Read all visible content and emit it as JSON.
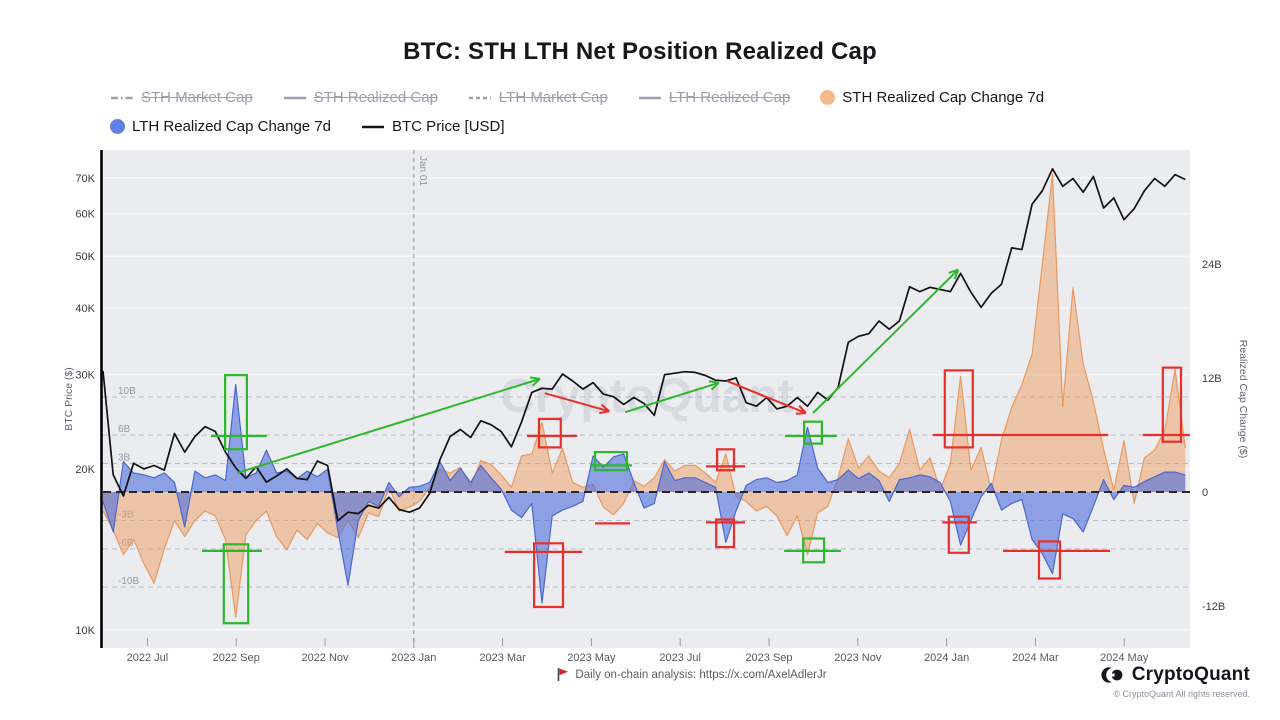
{
  "header": {
    "title": "BTC: STH LTH Net Position Realized Cap"
  },
  "legend": {
    "items": [
      {
        "label": "STH Market Cap",
        "icon": "line-dashdot",
        "color": "#9aa0ae",
        "disabled": true,
        "row": 1
      },
      {
        "label": "STH Realized Cap",
        "icon": "line",
        "color": "#9aa0ae",
        "disabled": true,
        "row": 1
      },
      {
        "label": "LTH Market Cap",
        "icon": "line-dashed",
        "color": "#9aa0ae",
        "disabled": true,
        "row": 1
      },
      {
        "label": "LTH Realized Cap",
        "icon": "line",
        "color": "#9aa0ae",
        "disabled": true,
        "row": 1
      },
      {
        "label": "STH Realized Cap Change 7d",
        "icon": "circle",
        "color": "#f3b88c",
        "disabled": false,
        "row": 1
      },
      {
        "label": "LTH Realized Cap Change 7d",
        "icon": "circle",
        "color": "#5f80e6",
        "disabled": false,
        "row": 2
      },
      {
        "label": "BTC Price [USD]",
        "icon": "line",
        "color": "#141418",
        "disabled": false,
        "row": 2
      }
    ]
  },
  "chart_data": {
    "type": "mixed",
    "title": "BTC: STH LTH Net Position Realized Cap",
    "watermark": "CryptoQuant",
    "start_date": "2022-06-01",
    "interval_days": 7,
    "axes": {
      "left": {
        "label": "BTC Price ($)",
        "scale": "log",
        "ticks": [
          {
            "value": 70,
            "label": "70K"
          },
          {
            "value": 60,
            "label": "60K"
          },
          {
            "value": 50,
            "label": "50K"
          },
          {
            "value": 40,
            "label": "40K"
          },
          {
            "value": 30,
            "label": "30K"
          },
          {
            "value": 20,
            "label": "20K"
          },
          {
            "value": 10,
            "label": "10K"
          }
        ]
      },
      "right": {
        "label": "Realized Cap Change ($)",
        "scale": "linear",
        "ticks": [
          {
            "value": 24,
            "label": "24B"
          },
          {
            "value": 12,
            "label": "12B"
          },
          {
            "value": 0,
            "label": "0"
          },
          {
            "value": -12,
            "label": "-12B"
          }
        ]
      },
      "inner_gridlines": [
        {
          "value": 10,
          "label": "10B"
        },
        {
          "value": 6,
          "label": "6B"
        },
        {
          "value": 3,
          "label": "3B"
        },
        {
          "value": -3,
          "label": "-3B"
        },
        {
          "value": -6,
          "label": "-6B"
        },
        {
          "value": -10,
          "label": "-10B"
        }
      ],
      "x_ticks": [
        {
          "month_offset": 1,
          "label": "2022 Jul"
        },
        {
          "month_offset": 3,
          "label": "2022 Sep"
        },
        {
          "month_offset": 5,
          "label": "2022 Nov"
        },
        {
          "month_offset": 7,
          "label": "2023 Jan"
        },
        {
          "month_offset": 9,
          "label": "2023 Mar"
        },
        {
          "month_offset": 11,
          "label": "2023 May"
        },
        {
          "month_offset": 13,
          "label": "2023 Jul"
        },
        {
          "month_offset": 15,
          "label": "2023 Sep"
        },
        {
          "month_offset": 17,
          "label": "2023 Nov"
        },
        {
          "month_offset": 19,
          "label": "2024 Jan"
        },
        {
          "month_offset": 21,
          "label": "2024 Mar"
        },
        {
          "month_offset": 23,
          "label": "2024 May"
        }
      ]
    },
    "event_line": {
      "label": "Jan 01",
      "month_offset": 7.0
    },
    "zero_line_value": 0,
    "series": [
      {
        "id": "sth-change",
        "name": "STH Realized Cap Change 7d",
        "type": "area",
        "axis": "right",
        "fill": "rgba(238,160,100,0.52)",
        "stroke": "rgba(233,150,92,0.95)",
        "unit": "B USD",
        "values": [
          -2.0,
          -4.0,
          -6.6,
          -5.0,
          -7.5,
          -9.6,
          -6.0,
          -3.0,
          -4.7,
          -3.0,
          -2.0,
          -2.5,
          -5.0,
          -13.2,
          -4.5,
          -3.0,
          -2.0,
          -4.7,
          -6.1,
          -4.0,
          -5.0,
          -3.3,
          -4.3,
          -4.8,
          -3.0,
          -4.8,
          -2.2,
          -2.6,
          0.5,
          -2.0,
          -1.6,
          -1.0,
          0.5,
          2.4,
          2.0,
          2.6,
          0.6,
          3.3,
          2.9,
          1.8,
          0.5,
          3.8,
          4.0,
          7.3,
          2.0,
          4.6,
          1.0,
          0.5,
          0.8,
          -1.6,
          -2.4,
          -1.2,
          1.2,
          0.6,
          1.5,
          3.4,
          2.2,
          2.8,
          2.8,
          2.0,
          1.0,
          4.0,
          -0.5,
          -1.0,
          -2.0,
          -1.5,
          -2.5,
          -4.6,
          -2.5,
          -6.6,
          -2.2,
          -1.5,
          1.5,
          5.6,
          2.5,
          3.8,
          2.2,
          1.5,
          3.0,
          6.6,
          2.3,
          3.6,
          0.2,
          3.0,
          12.2,
          2.3,
          4.7,
          0.2,
          5.5,
          8.9,
          11.3,
          14.5,
          24.0,
          33.5,
          9.0,
          21.5,
          13.5,
          9.5,
          4.5,
          0.2,
          5.4,
          -1.2,
          3.6,
          4.4,
          6.5,
          12.9,
          4.6
        ]
      },
      {
        "id": "lth-change",
        "name": "LTH Realized Cap Change 7d",
        "type": "area",
        "axis": "right",
        "fill": "rgba(78,110,218,0.60)",
        "stroke": "#4a68cf",
        "unit": "B USD",
        "values": [
          -1.0,
          -4.2,
          3.2,
          2.0,
          1.8,
          1.5,
          2.0,
          1.0,
          -3.7,
          2.2,
          1.5,
          1.8,
          1.2,
          11.3,
          1.5,
          2.0,
          4.4,
          2.0,
          2.2,
          1.4,
          2.2,
          1.6,
          2.4,
          -4.0,
          -9.8,
          -3.0,
          -1.0,
          -1.5,
          1.0,
          -0.5,
          0.5,
          0.6,
          1.0,
          3.2,
          1.2,
          2.5,
          1.0,
          2.8,
          1.5,
          0.3,
          -1.9,
          -2.7,
          -1.2,
          -11.7,
          -2.5,
          -1.9,
          -1.5,
          -1.0,
          3.8,
          2.6,
          3.7,
          4.0,
          1.0,
          -1.7,
          -1.2,
          3.2,
          1.2,
          1.5,
          1.5,
          1.0,
          0.5,
          -5.3,
          -2.0,
          0.7,
          1.3,
          1.5,
          1.0,
          1.2,
          1.8,
          6.8,
          2.5,
          1.0,
          1.3,
          2.3,
          1.4,
          2.0,
          1.2,
          -1.0,
          1.3,
          1.5,
          1.8,
          1.6,
          1.0,
          -1.0,
          -5.6,
          -3.0,
          -0.5,
          0.9,
          -1.9,
          -1.2,
          -0.8,
          -5.0,
          -6.5,
          -8.6,
          -2.3,
          -2.8,
          -4.2,
          -1.5,
          1.3,
          -0.8,
          0.7,
          0.5,
          1.1,
          1.6,
          2.1,
          2.1,
          1.8
        ]
      },
      {
        "id": "btc-price",
        "name": "BTC Price [USD]",
        "type": "line",
        "axis": "left",
        "stroke": "#121214",
        "unit": "K USD",
        "values": [
          30.5,
          19.5,
          17.8,
          20.5,
          20.0,
          20.3,
          19.9,
          23.3,
          21.5,
          23.0,
          24.0,
          23.5,
          21.5,
          20.1,
          19.2,
          20.2,
          18.9,
          19.4,
          20.0,
          19.2,
          19.1,
          20.7,
          20.3,
          16.0,
          16.6,
          16.5,
          17.1,
          16.9,
          17.7,
          16.8,
          16.6,
          16.9,
          18.0,
          20.8,
          23.0,
          23.7,
          22.9,
          24.6,
          24.2,
          23.5,
          22.0,
          24.5,
          27.8,
          28.3,
          28.2,
          30.1,
          29.2,
          28.2,
          29.0,
          27.6,
          27.3,
          26.4,
          27.2,
          26.5,
          25.2,
          30.0,
          30.2,
          30.4,
          30.3,
          29.9,
          29.3,
          29.2,
          29.6,
          26.6,
          26.2,
          27.2,
          25.9,
          26.2,
          27.2,
          26.2,
          27.8,
          26.9,
          28.4,
          34.5,
          35.4,
          35.8,
          37.8,
          36.5,
          37.8,
          43.8,
          42.9,
          43.7,
          43.3,
          42.9,
          46.4,
          42.8,
          40.1,
          42.6,
          44.3,
          51.8,
          51.4,
          62.5,
          66.2,
          72.8,
          67.5,
          69.8,
          65.8,
          70.4,
          61.5,
          64.2,
          58.5,
          61.3,
          66.2,
          69.8,
          67.5,
          71.0,
          69.5
        ]
      }
    ],
    "annotations": {
      "arrow_color_up": "#2cb72c",
      "arrow_color_down": "#e8302a",
      "arrows": [
        {
          "color": "#2cb72c",
          "from": [
            3.02,
            2.0
          ],
          "to": [
            9.84,
            11.9
          ]
        },
        {
          "color": "#2cb72c",
          "from": [
            11.76,
            8.4
          ],
          "to": [
            13.87,
            11.5
          ]
        },
        {
          "color": "#2cb72c",
          "from": [
            15.99,
            8.3
          ],
          "to": [
            19.26,
            23.4
          ]
        },
        {
          "color": "#e8302a",
          "from": [
            9.95,
            10.4
          ],
          "to": [
            11.4,
            8.5
          ]
        },
        {
          "color": "#e8302a",
          "from": [
            14.05,
            11.7
          ],
          "to": [
            15.83,
            8.3
          ]
        }
      ],
      "boxes": [
        {
          "color": "#2cb72c",
          "m": [
            2.75,
            3.24
          ],
          "b": [
            12.3,
            4.5
          ]
        },
        {
          "color": "#2cb72c",
          "m": [
            2.72,
            3.27
          ],
          "b": [
            -5.5,
            -13.8
          ]
        },
        {
          "color": "#2cb72c",
          "m": [
            11.08,
            11.8
          ],
          "b": [
            4.2,
            2.3
          ]
        },
        {
          "color": "#2cb72c",
          "m": [
            15.79,
            16.19
          ],
          "b": [
            7.4,
            5.1
          ]
        },
        {
          "color": "#2cb72c",
          "m": [
            15.77,
            16.24
          ],
          "b": [
            -4.9,
            -7.4
          ]
        },
        {
          "color": "#e8302a",
          "m": [
            9.82,
            10.31
          ],
          "b": [
            7.7,
            4.7
          ]
        },
        {
          "color": "#e8302a",
          "m": [
            9.71,
            10.36
          ],
          "b": [
            -5.4,
            -12.1
          ]
        },
        {
          "color": "#e8302a",
          "m": [
            13.83,
            14.21
          ],
          "b": [
            4.5,
            2.3
          ]
        },
        {
          "color": "#e8302a",
          "m": [
            13.81,
            14.21
          ],
          "b": [
            -2.9,
            -5.8
          ]
        },
        {
          "color": "#e8302a",
          "m": [
            18.96,
            19.59
          ],
          "b": [
            12.8,
            4.7
          ]
        },
        {
          "color": "#e8302a",
          "m": [
            19.05,
            19.5
          ],
          "b": [
            -2.6,
            -6.4
          ]
        },
        {
          "color": "#e8302a",
          "m": [
            21.08,
            21.55
          ],
          "b": [
            -5.2,
            -9.1
          ]
        },
        {
          "color": "#e8302a",
          "m": [
            23.87,
            24.28
          ],
          "b": [
            13.1,
            5.3
          ]
        }
      ],
      "hlines": [
        {
          "color": "#2cb72c",
          "b": 5.9,
          "m": [
            2.43,
            3.69
          ]
        },
        {
          "color": "#2cb72c",
          "b": -6.2,
          "m": [
            2.23,
            3.58
          ]
        },
        {
          "color": "#2cb72c",
          "b": 2.8,
          "m": [
            10.97,
            11.91
          ]
        },
        {
          "color": "#2cb72c",
          "b": 5.9,
          "m": [
            15.36,
            16.53
          ]
        },
        {
          "color": "#2cb72c",
          "b": -6.2,
          "m": [
            15.34,
            16.62
          ]
        },
        {
          "color": "#e8302a",
          "b": 5.9,
          "m": [
            9.55,
            10.68
          ]
        },
        {
          "color": "#e8302a",
          "b": -6.3,
          "m": [
            9.05,
            10.79
          ]
        },
        {
          "color": "#e8302a",
          "b": -3.3,
          "m": [
            11.08,
            11.87
          ]
        },
        {
          "color": "#e8302a",
          "b": 2.7,
          "m": [
            13.58,
            14.46
          ]
        },
        {
          "color": "#e8302a",
          "b": -3.2,
          "m": [
            13.58,
            14.46
          ]
        },
        {
          "color": "#e8302a",
          "b": 6.0,
          "m": [
            18.69,
            22.64
          ]
        },
        {
          "color": "#e8302a",
          "b": 6.0,
          "m": [
            23.42,
            24.48
          ]
        },
        {
          "color": "#e8302a",
          "b": -3.2,
          "m": [
            18.9,
            19.68
          ]
        },
        {
          "color": "#e8302a",
          "b": -6.2,
          "m": [
            20.27,
            22.68
          ]
        }
      ]
    }
  },
  "footer": {
    "note": "Daily on-chain analysis: https://x.com/AxelAdlerJr",
    "brand_name": "CryptoQuant",
    "copyright": "© CryptoQuant All rights reserved."
  }
}
